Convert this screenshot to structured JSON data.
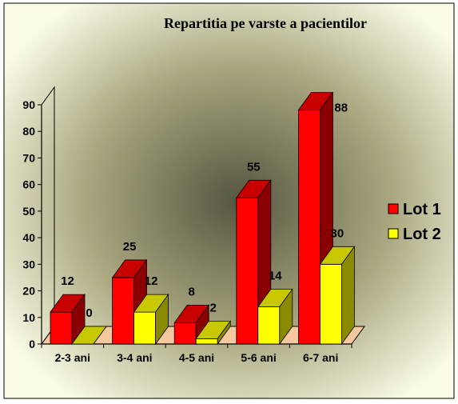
{
  "chart_data": {
    "type": "bar",
    "title": "Repartitia pe varste a pacientilor",
    "categories": [
      "2-3 ani",
      "3-4 ani",
      "4-5 ani",
      "5-6 ani",
      "6-7 ani"
    ],
    "series": [
      {
        "name": "Lot 1",
        "values": [
          12,
          25,
          8,
          55,
          88
        ],
        "color": "#ff0000",
        "top_color": "#c80000",
        "side_color": "#8a0000"
      },
      {
        "name": "Lot 2",
        "values": [
          0,
          12,
          2,
          14,
          30
        ],
        "color": "#ffff00",
        "top_color": "#c8c800",
        "side_color": "#8a8a00"
      }
    ],
    "ylim": [
      0,
      90
    ],
    "yticks": [
      0,
      10,
      20,
      30,
      40,
      50,
      60,
      70,
      80,
      90
    ],
    "grid": false,
    "three_d": true,
    "legend_position": "right",
    "floor_color": "#f5c8a0"
  }
}
